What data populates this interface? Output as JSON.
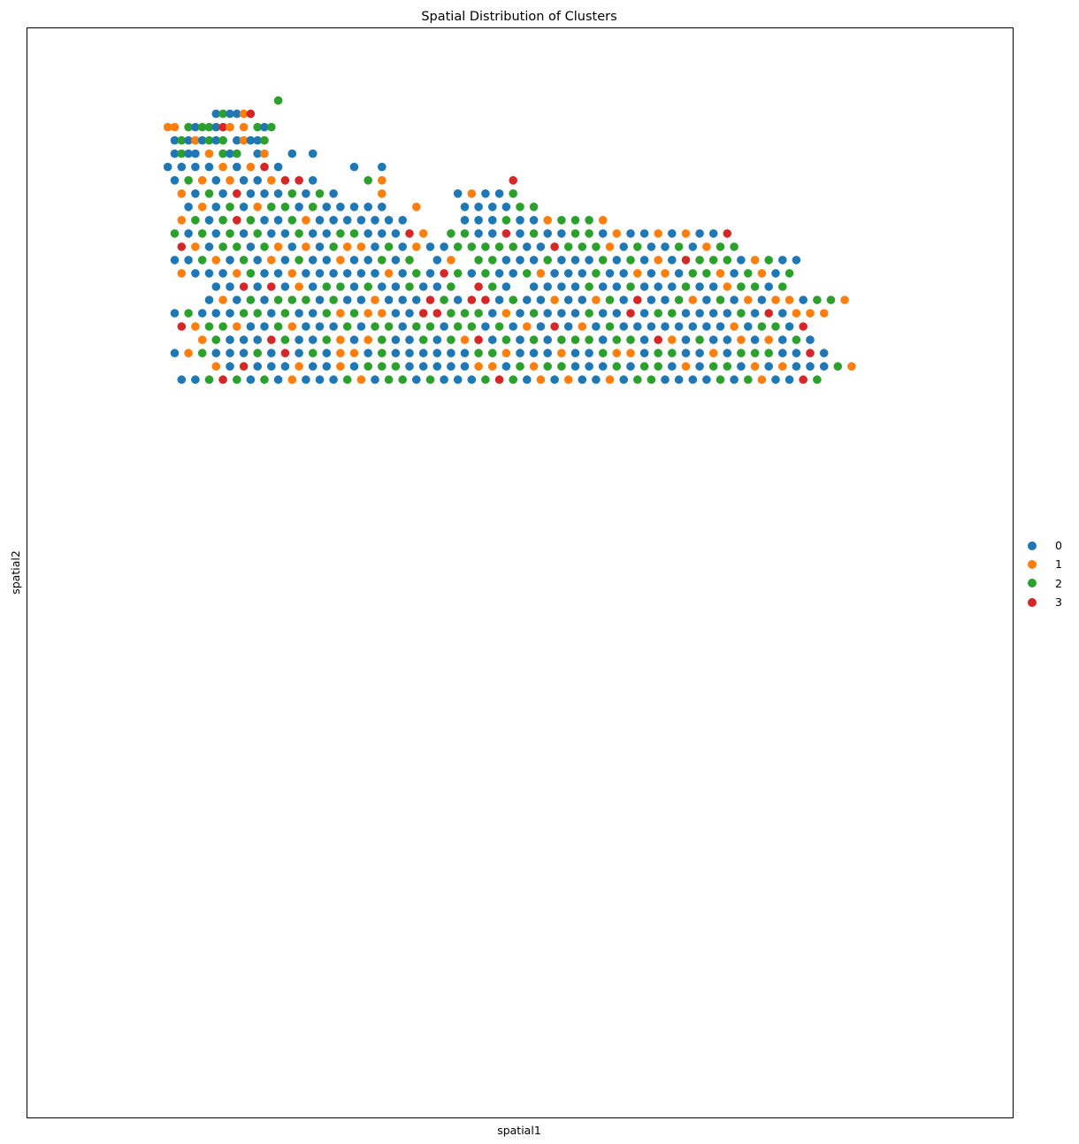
{
  "chart_data": {
    "type": "scatter",
    "title": "Spatial Distribution of Clusters",
    "xlabel": "spatial1",
    "ylabel": "spatial2",
    "xticks": false,
    "yticks": false,
    "grid": false,
    "legend_position": "right",
    "categories": [
      "0",
      "1",
      "2",
      "3"
    ],
    "colors": {
      "0": "#1f77b4",
      "1": "#ff7f0e",
      "2": "#2ca02c",
      "3": "#d62728"
    },
    "xlim": [
      0,
      132
    ],
    "ylim": [
      0,
      78
    ],
    "points_note": "grid of spots; x,y in spatial coordinates",
    "rows": [
      {
        "y": 74.0,
        "x0": 31,
        "s": "2"
      },
      {
        "y": 73.0,
        "x0": 22,
        "s": "020013"
      },
      {
        "y": 72.0,
        "x0": 15,
        "s": "11.2022031.1.202"
      },
      {
        "y": 71.0,
        "x0": 16,
        "s": "02010202.01002"
      },
      {
        "y": 70.0,
        "x0": 16,
        "s": "0200.1.202..01...0..0.."
      },
      {
        "y": 69.0,
        "x0": 15,
        "s": "0.0.0.0.1.0.1.3.0..........0...0"
      },
      {
        "y": 68.0,
        "x0": 16,
        "s": "0.2.1.0.1.0.0.1.3.3.0.......2.1..................3"
      },
      {
        "y": 67.0,
        "x0": 17,
        "s": "1.0.2.0.3.0.0.0.2.0.2.0......1..........0.1.0.0.2"
      },
      {
        "y": 66.0,
        "x0": 18,
        "s": "0.1.0.2.0.1.2.2.0.2.0.0.0.0.0....1......0.0.0.0.2.2"
      },
      {
        "y": 65.0,
        "x0": 17,
        "s": "1.2.0.2.3.2.0.0.2.1.0.0.0.0.0.0.0........0.0.0.2.0.0.1.2.2.2.1"
      },
      {
        "y": 64.0,
        "x0": 16,
        "s": "2.0.2.0.2.0.2.0.0.2.0.0.2.2.0.0.0.3.1...2.2.0.0.3.0.2.0.0.2.2.0.1.0.0.1.0.1.0.0.3"
      },
      {
        "y": 63.0,
        "x0": 17,
        "s": "3.1.0.2.2.0.2.1.0.1.0.2.1.1.0.2.0.1.0.0.2.2.2.2.2.0.0.3.2.2.2.1.0.2.0.0.2.0.1.2.2"
      },
      {
        "y": 62.0,
        "x0": 16,
        "s": "0.0.2.1.0.2.0.1.0.2.0.0.1.0.0.2.0.2...0.1...2.2.0.0.0.2.0.0.0.2.0.2.0.1.0.3.2.2.2.0.1.2.0.0"
      },
      {
        "y": 61.0,
        "x0": 17,
        "s": "1.0.0.0.1.2.0.0.1.0.0.0.0.0.0.1.0.2.0.3.2.0.2.0.0.2.1.0.0.0.2.0.0.1.0.1.0.2.2.1.0.2.1.0.2"
      },
      {
        "y": 60.0,
        "x0": 22,
        "s": "0.0.3.0.3.0.1.0.2.2.0.2.0.0.2.0.0.2...3.2.0...0.0.0.0.2.0.0.2.0.0.0.2.0.0.1.2.2.0.2"
      },
      {
        "y": 59.0,
        "x0": 21,
        "s": "0.1.0.2.0.2.2.2.0.2.0.0.1.0.0.0.3.2.0.3.3.0.2.0.0.1.0.0.1.2.0.3.0.0.2.1.0.2.0.1.0.1.1.0.2.2.1"
      },
      {
        "y": 58.0,
        "x0": 16,
        "s": "0.2.0.0.0.2.2.0.2.0.0.2.1.2.1.1.0.0.3.3.2.2.2.0.1.0.2.0.0.0.2.0.0.3.0.2.2.0.0.0.0.2.0.3.0.1.1.1"
      },
      {
        "y": 57.0,
        "x0": 17,
        "s": "3.1.2.2.1.0.0.2.1.0.0.0.2.0.2.2.0.2.2.0.2.2.0.2.0.1.0.3.0.1.0.2.0.0.0.0.0.0.0.0.1.0.2.2.0.3"
      },
      {
        "y": 56.0,
        "x0": 20,
        "s": "1.2.0.0.0.3.2.0.0.2.1.0.1.2.0.0.2.0.2.1.3.0.2.0.2.0.2.2.2.0.2.2.0.3.1.0.2.0.0.1.0.1.0.2.0"
      },
      {
        "y": 55.0,
        "x0": 16,
        "s": "0.1.2.0.0.0.2.0.3.0.2.0.1.1.0.2.0.0.0.0.0.0.2.2.1.0.0.0.1.0.0.2.1.1.0.2.2.0.0.1.0.2.2.2.0.0.3.0"
      },
      {
        "y": 54.0,
        "x0": 22,
        "s": "1.0.3.0.0.0.1.0.0.1.0.2.2.2.0.0.0.0.0.1.1.0.2.1.2.2.0.0.0.2.0.2.2.0.1.0.2.2.0.1.0.1.0.0.0.2.1"
      },
      {
        "y": 53.0,
        "x0": 17,
        "s": "0.0.2.3.2.0.2.0.1.0.0.0.2.1.0.2.2.0.2.0.0.0.2.3.2.0.1.0.1.0.0.1.0.2.2.0.0.0.0.2.0.2.1.0.0.3.2"
      }
    ]
  }
}
